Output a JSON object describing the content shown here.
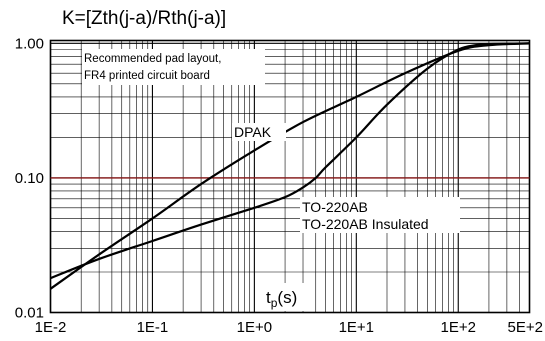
{
  "chart_data": {
    "type": "line",
    "title": "K=[Zth(j-a)/Rth(j-a)]",
    "x_scale": "log",
    "y_scale": "log",
    "xlim": [
      0.01,
      500
    ],
    "ylim": [
      0.01,
      1.05
    ],
    "x_ticks": [
      {
        "value": 0.01,
        "label": "1E-2"
      },
      {
        "value": 0.1,
        "label": "1E-1"
      },
      {
        "value": 1,
        "label": "1E+0"
      },
      {
        "value": 10,
        "label": "1E+1"
      },
      {
        "value": 100,
        "label": "1E+2"
      },
      {
        "value": 500,
        "label": "5E+2"
      }
    ],
    "y_ticks": [
      {
        "value": 0.01,
        "label": "0.01"
      },
      {
        "value": 0.1,
        "label": "0.10"
      },
      {
        "value": 1,
        "label": "1.00"
      }
    ],
    "grid": true,
    "reference_line": {
      "y": 0.1,
      "color": "#8b1a1a"
    },
    "xlabel": {
      "base": "t",
      "sub": "p",
      "rest": "(s)"
    },
    "note_lines": [
      "Recommended pad layout,",
      "FR4 printed circuit board"
    ],
    "series": [
      {
        "name": "DPAK",
        "x": [
          0.01,
          0.03,
          0.1,
          0.3,
          1,
          3,
          10,
          30,
          100,
          200,
          500
        ],
        "y": [
          0.015,
          0.027,
          0.05,
          0.09,
          0.16,
          0.26,
          0.4,
          0.6,
          0.88,
          0.97,
          1.0
        ]
      },
      {
        "name": "TO-220AB",
        "x": [
          0.01,
          0.03,
          0.1,
          0.3,
          1,
          2,
          3,
          4,
          5,
          10,
          20,
          50,
          100,
          150,
          200,
          500
        ],
        "y": [
          0.018,
          0.025,
          0.034,
          0.045,
          0.06,
          0.072,
          0.085,
          0.1,
          0.12,
          0.2,
          0.35,
          0.65,
          0.9,
          0.97,
          0.99,
          1.0
        ]
      }
    ],
    "curve_labels": [
      "DPAK",
      "TO-220AB",
      "TO-220AB Insulated"
    ]
  }
}
